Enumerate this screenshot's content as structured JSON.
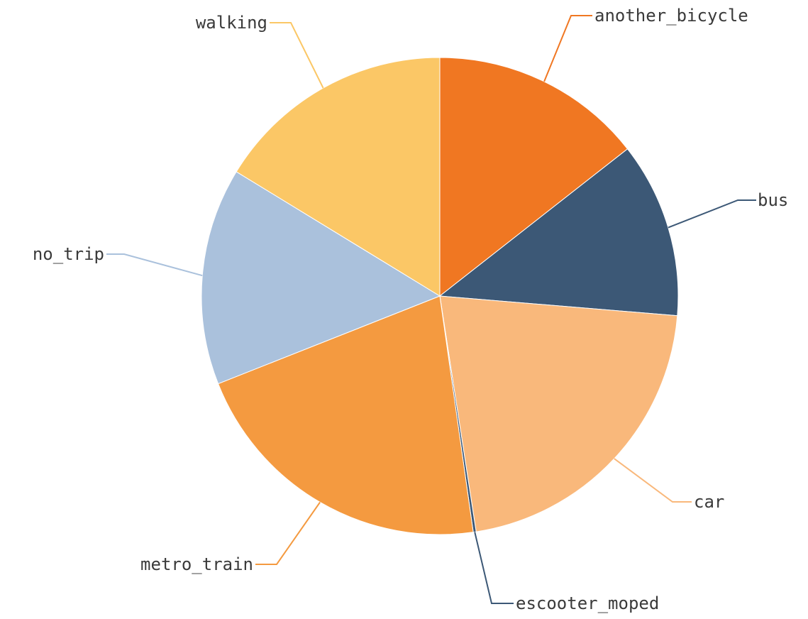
{
  "chart_data": {
    "type": "pie",
    "slices": [
      {
        "label": "another_bicycle",
        "value": 14.8,
        "color": "#f07722"
      },
      {
        "label": "bus",
        "value": 12.2,
        "color": "#3c5876"
      },
      {
        "label": "car",
        "value": 21.8,
        "color": "#f9b87b"
      },
      {
        "label": "escooter_moped",
        "value": 0.2,
        "color": "#3c5876"
      },
      {
        "label": "metro_train",
        "value": 21.8,
        "color": "#f49a40"
      },
      {
        "label": "no_trip",
        "value": 15.1,
        "color": "#aac1dc"
      },
      {
        "label": "walking",
        "value": 16.7,
        "color": "#fbc766"
      }
    ]
  }
}
